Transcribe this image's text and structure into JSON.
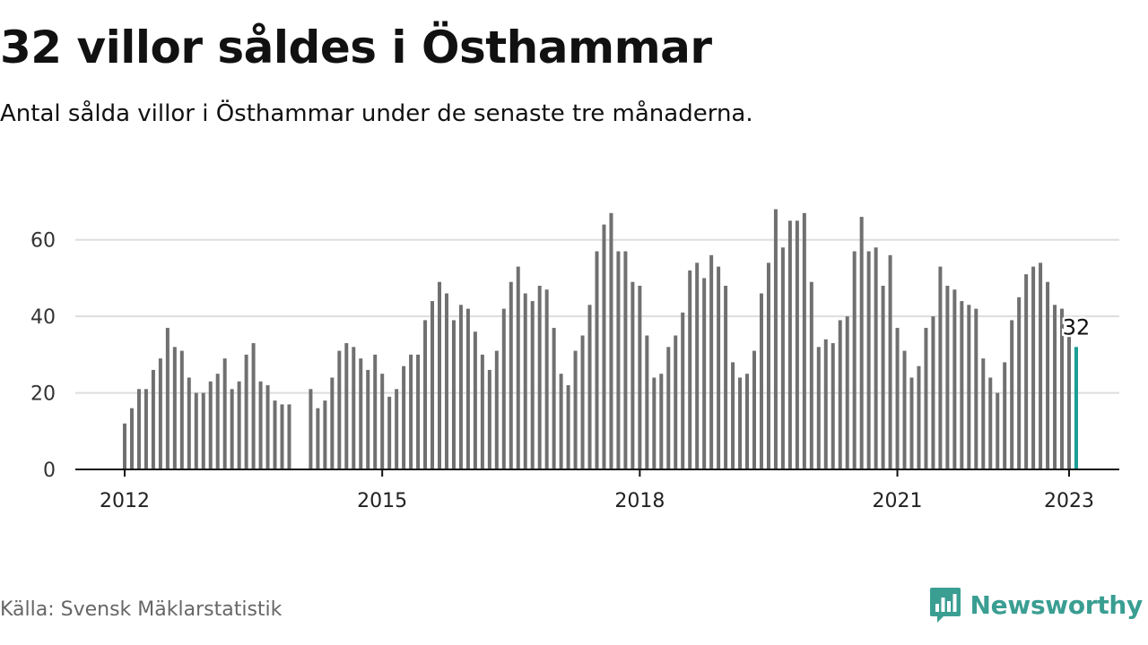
{
  "title": "32 villor såldes i Östhammar",
  "subtitle": "Antal sålda villor i Östhammar under de senaste tre månaderna.",
  "source": "Källa: Svensk Mäklarstatistik",
  "brand": {
    "name": "Newsworthy",
    "icon": "newsworthy-logo-icon",
    "color": "#3a9e92"
  },
  "colors": {
    "bar": "#707070",
    "highlight": "#1a9e96",
    "grid": "#dddddd",
    "axis": "#111111"
  },
  "chart_data": {
    "type": "bar",
    "x_start": "2012-01",
    "x_end": "2023-01",
    "x_ticks": [
      "2012",
      "2015",
      "2018",
      "2021",
      "2023"
    ],
    "y_ticks": [
      0,
      20,
      40,
      60
    ],
    "ylim": [
      0,
      70
    ],
    "grid": true,
    "highlight_label": "32",
    "values": [
      12,
      16,
      21,
      21,
      26,
      29,
      37,
      32,
      31,
      24,
      20,
      20,
      23,
      25,
      29,
      21,
      23,
      30,
      33,
      23,
      22,
      18,
      17,
      17,
      null,
      null,
      21,
      16,
      18,
      24,
      31,
      33,
      32,
      29,
      26,
      30,
      25,
      19,
      21,
      27,
      30,
      30,
      39,
      44,
      49,
      46,
      39,
      43,
      42,
      36,
      30,
      26,
      31,
      42,
      49,
      53,
      46,
      44,
      48,
      47,
      37,
      25,
      22,
      31,
      35,
      43,
      57,
      64,
      67,
      57,
      57,
      49,
      48,
      35,
      24,
      25,
      32,
      35,
      41,
      52,
      54,
      50,
      56,
      53,
      48,
      28,
      24,
      25,
      31,
      46,
      54,
      68,
      58,
      65,
      65,
      67,
      49,
      32,
      34,
      33,
      39,
      40,
      57,
      66,
      57,
      58,
      48,
      56,
      37,
      31,
      24,
      27,
      37,
      40,
      53,
      48,
      47,
      44,
      43,
      42,
      29,
      24,
      20,
      28,
      39,
      45,
      51,
      53,
      54,
      49,
      43,
      42,
      35,
      32
    ]
  }
}
